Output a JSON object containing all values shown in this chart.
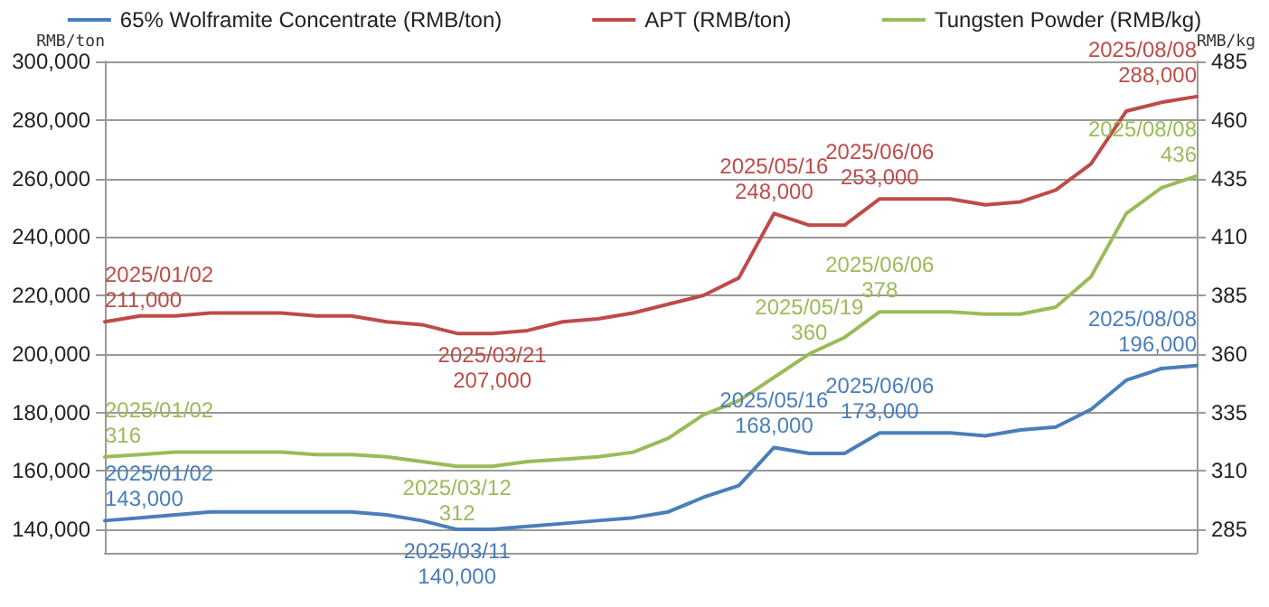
{
  "chart_data": {
    "type": "line",
    "ylabel": "RMB/ton",
    "y2label": "RMB/kg",
    "categories": [
      null,
      null,
      null,
      null,
      null,
      null,
      null,
      null,
      null,
      null,
      null,
      null,
      null,
      null,
      null,
      null,
      null,
      null,
      null,
      null,
      null,
      null,
      null,
      null,
      null,
      null,
      null,
      null,
      null,
      null,
      null,
      null
    ],
    "ylim": [
      132000,
      300000
    ],
    "yticks": [
      {
        "value": 140000,
        "label": "140,000"
      },
      {
        "value": 160000,
        "label": "160,000"
      },
      {
        "value": 180000,
        "label": "180,000"
      },
      {
        "value": 200000,
        "label": "200,000"
      },
      {
        "value": 220000,
        "label": "220,000"
      },
      {
        "value": 240000,
        "label": "240,000"
      },
      {
        "value": 260000,
        "label": "260,000"
      },
      {
        "value": 280000,
        "label": "280,000"
      },
      {
        "value": 300000,
        "label": "300,000"
      }
    ],
    "y2lim": [
      275,
      485
    ],
    "y2ticks": [
      285,
      310,
      335,
      360,
      385,
      410,
      435,
      460,
      485
    ],
    "grid": "y",
    "legend": "top",
    "tick_labels": "y",
    "line_style": "solid",
    "series": [
      {
        "name": "65% Wolframite Concentrate (RMB/ton)",
        "color": "#4a7ebb",
        "values": [
          143000,
          144000,
          145000,
          146000,
          146000,
          146000,
          146000,
          146000,
          145000,
          143000,
          140000,
          140000,
          141000,
          142000,
          143000,
          144000,
          146000,
          151000,
          155000,
          168000,
          166000,
          166000,
          173000,
          173000,
          173000,
          172000,
          174000,
          175000,
          181000,
          191000,
          195000,
          196000
        ],
        "value_labels": [
          "2025/01/02\n143,000",
          null,
          null,
          null,
          null,
          null,
          null,
          null,
          null,
          null,
          "2025/03/11\n140,000",
          null,
          null,
          null,
          null,
          null,
          null,
          null,
          null,
          "2025/05/16\n168,000",
          null,
          null,
          "2025/06/06\n173,000",
          null,
          null,
          null,
          null,
          null,
          null,
          null,
          null,
          "2025/08/08\n196,000"
        ]
      },
      {
        "name": "APT (RMB/ton)",
        "color": "#be4b48",
        "values": [
          211000,
          213000,
          213000,
          214000,
          214000,
          214000,
          213000,
          213000,
          211000,
          210000,
          207000,
          207000,
          208000,
          211000,
          212000,
          214000,
          217000,
          220000,
          226000,
          248000,
          244000,
          244000,
          253000,
          253000,
          253000,
          251000,
          252000,
          256000,
          265000,
          283000,
          286000,
          288000
        ],
        "value_labels": [
          "2025/01/02\n211,000",
          null,
          null,
          null,
          null,
          null,
          null,
          null,
          null,
          null,
          null,
          "2025/03/21\n207,000",
          null,
          null,
          null,
          null,
          null,
          null,
          null,
          "2025/05/16\n248,000",
          null,
          null,
          "2025/06/06\n253,000",
          null,
          null,
          null,
          null,
          null,
          null,
          null,
          null,
          "2025/08/08\n288,000"
        ]
      },
      {
        "name": "Tungsten Powder (RMB/kg)",
        "color": "#9bbb59",
        "axis": "y2",
        "values": [
          316,
          317,
          318,
          318,
          318,
          318,
          317,
          317,
          316,
          314,
          312,
          312,
          314,
          315,
          316,
          318,
          324,
          334,
          340,
          350,
          360,
          367,
          378,
          378,
          378,
          377,
          377,
          380,
          393,
          420,
          431,
          436
        ],
        "value_labels": [
          "2025/01/02\n316",
          null,
          null,
          null,
          null,
          null,
          null,
          null,
          null,
          null,
          "2025/03/12\n312",
          null,
          null,
          null,
          null,
          null,
          null,
          null,
          null,
          null,
          "2025/05/19\n360",
          null,
          "2025/06/06\n378",
          null,
          null,
          null,
          null,
          null,
          null,
          null,
          null,
          "2025/08/08\n436"
        ]
      }
    ]
  }
}
